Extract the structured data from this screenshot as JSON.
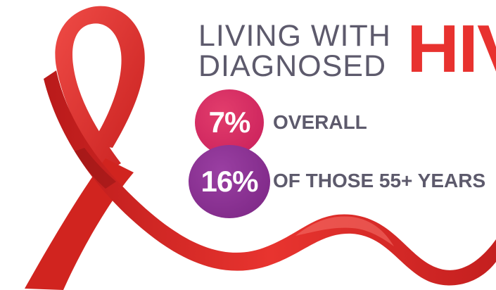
{
  "headline": {
    "line1": "LIVING WITH",
    "line2": "DIAGNOSED",
    "accent": "HIV"
  },
  "stats": [
    {
      "value": "7%",
      "label": "OVERALL",
      "color": "#d42a62"
    },
    {
      "value": "16%",
      "label": "OF THOSE 55+ YEARS",
      "color": "#8a2f93"
    }
  ],
  "colors": {
    "ribbon": "#e5322f",
    "text": "#5d5a6c",
    "accent": "#e8322f"
  },
  "icons": [
    "awareness-ribbon-icon"
  ]
}
